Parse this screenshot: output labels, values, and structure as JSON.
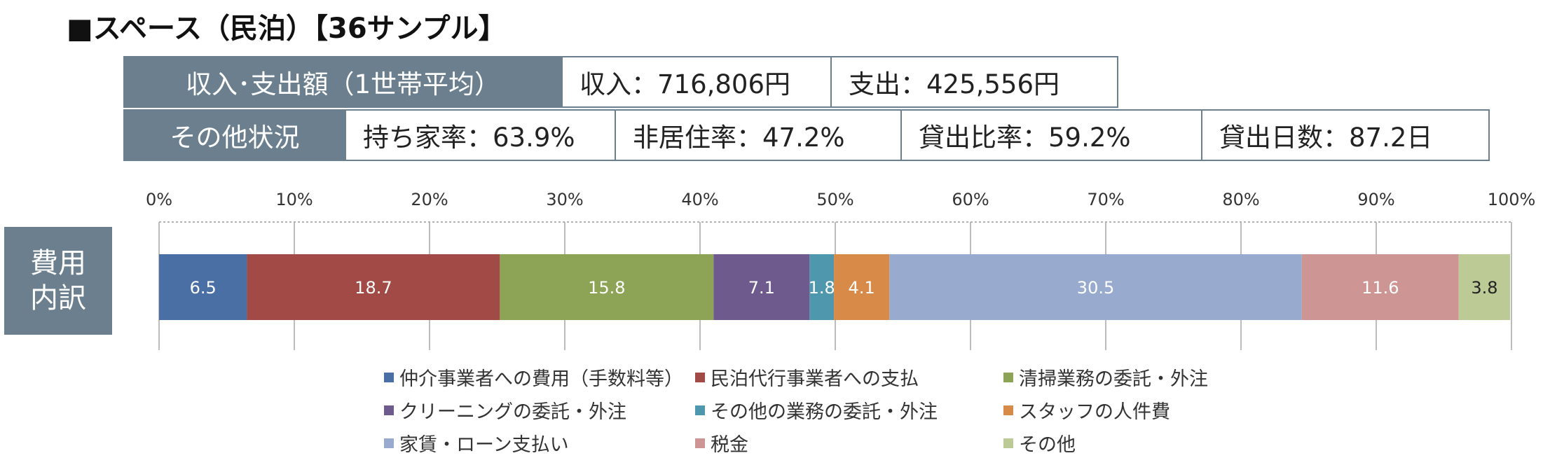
{
  "title": "■スペース（民泊）【36サンプル】",
  "summary": {
    "income_header": "収入･支出額（1世帯平均）",
    "income": "収入：716,806円",
    "expense": "支出：425,556円",
    "other_header": "その他状況",
    "ownership": "持ち家率：63.9%",
    "non_residence": "非居住率：47.2%",
    "rental_ratio": "貸出比率：59.2%",
    "rental_days": "貸出日数：87.2日"
  },
  "side_label": {
    "line1": "費用",
    "line2": "内訳"
  },
  "chart_data": {
    "type": "bar",
    "orientation": "horizontal",
    "stacked": true,
    "title": "",
    "xlabel": "",
    "ylabel": "",
    "xlim": [
      0,
      100
    ],
    "ticks": [
      "0%",
      "10%",
      "20%",
      "30%",
      "40%",
      "50%",
      "60%",
      "70%",
      "80%",
      "90%",
      "100%"
    ],
    "grid": true,
    "legend_position": "bottom",
    "series": [
      {
        "name": "仲介事業者への費用（手数料等）",
        "value": 6.5,
        "label": "6.5",
        "color": "#4a6fa5"
      },
      {
        "name": "民泊代行事業者への支払",
        "value": 18.7,
        "label": "18.7",
        "color": "#a14a46"
      },
      {
        "name": "清掃業務の委託・外注",
        "value": 15.8,
        "label": "15.8",
        "color": "#8da356"
      },
      {
        "name": "クリーニングの委託・外注",
        "value": 7.1,
        "label": "7.1",
        "color": "#6f5a8e"
      },
      {
        "name": "その他の業務の委託・外注",
        "value": 1.8,
        "label": "1.8",
        "color": "#4f97ad"
      },
      {
        "name": "スタッフの人件費",
        "value": 4.1,
        "label": "4.1",
        "color": "#d88a48"
      },
      {
        "name": "家賃・ローン支払い",
        "value": 30.5,
        "label": "30.5",
        "color": "#98abcf"
      },
      {
        "name": "税金",
        "value": 11.6,
        "label": "11.6",
        "color": "#cd9593"
      },
      {
        "name": "その他",
        "value": 3.8,
        "label": "3.8",
        "color": "#bccb96"
      }
    ]
  }
}
